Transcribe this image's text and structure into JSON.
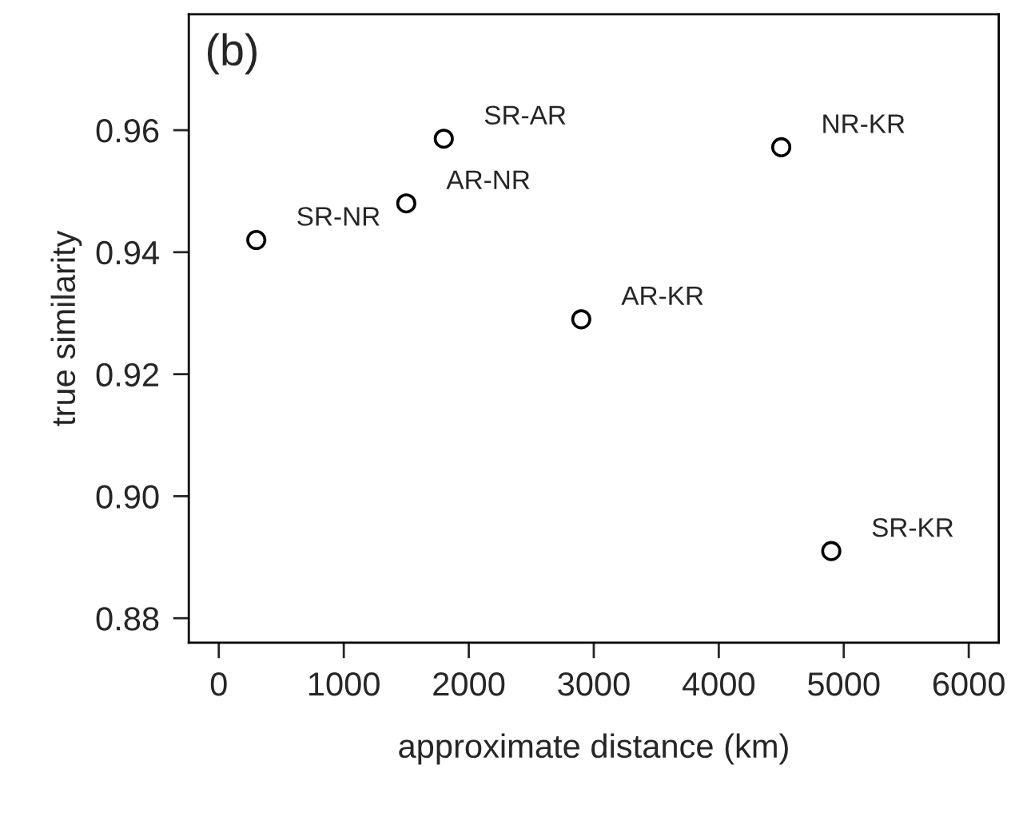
{
  "chart_data": {
    "type": "scatter",
    "xlabel": "approximate distance (km)",
    "ylabel": "true similarity",
    "x": [
      300,
      1500,
      1800,
      2900,
      4500,
      4900
    ],
    "series": [
      {
        "color": "#000000",
        "values": [
          0.942,
          0.948,
          0.9586,
          0.929,
          0.9572,
          0.891
        ]
      }
    ],
    "marker": "circle",
    "grid": false,
    "legend": false,
    "xlim": [
      -240,
      6240
    ],
    "xticks": [
      0,
      1000,
      2000,
      3000,
      4000,
      5000,
      6000
    ],
    "ylim": [
      0.876,
      0.979
    ],
    "yticks": [
      {
        "value": 0.88,
        "label": "0.88"
      },
      {
        "value": 0.9,
        "label": "0.90"
      },
      {
        "value": 0.92,
        "label": "0.92"
      },
      {
        "value": 0.94,
        "label": "0.94"
      },
      {
        "value": 0.96,
        "label": "0.96"
      }
    ],
    "annotations": [
      "(b)",
      {
        "text": "SR-NR",
        "x": 300,
        "y": 0.942
      },
      {
        "text": "AR-NR",
        "x": 1500,
        "y": 0.948
      },
      {
        "text": "SR-AR",
        "x": 1800,
        "y": 0.9586
      },
      {
        "text": "AR-KR",
        "x": 2900,
        "y": 0.929
      },
      {
        "text": "NR-KR",
        "x": 4500,
        "y": 0.9572
      },
      {
        "text": "SR-KR",
        "x": 4900,
        "y": 0.891
      }
    ]
  }
}
